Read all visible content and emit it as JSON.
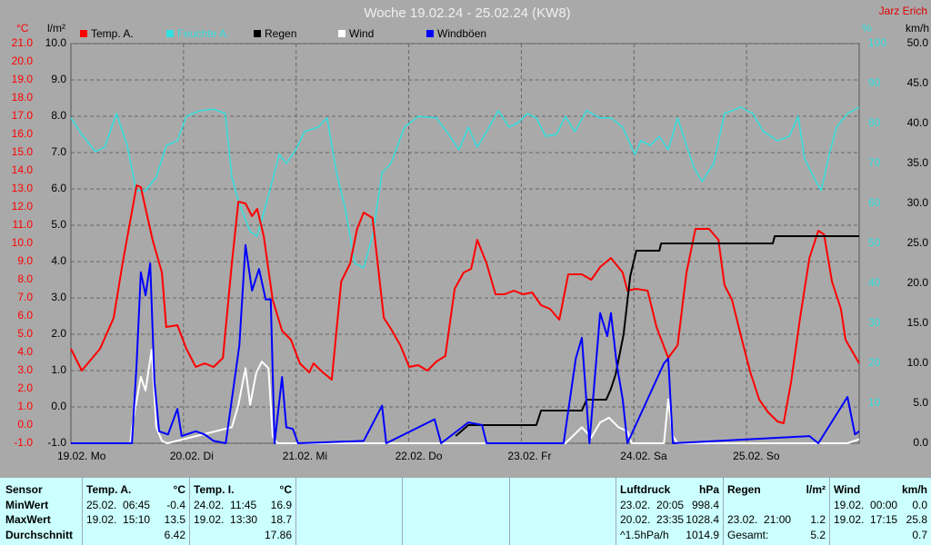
{
  "header": {
    "title": "Woche 19.02.24 - 25.02.24 (KW8)",
    "author": "Jarz Erich"
  },
  "chart_data": {
    "type": "line",
    "xlim": [
      0,
      168
    ],
    "xticks": [
      {
        "value": 0,
        "label": "19.02. Mo"
      },
      {
        "value": 24,
        "label": "20.02. Di"
      },
      {
        "value": 48,
        "label": "21.02. Mi"
      },
      {
        "value": 72,
        "label": "22.02. Do"
      },
      {
        "value": 96,
        "label": "23.02. Fr"
      },
      {
        "value": 120,
        "label": "24.02. Sa"
      },
      {
        "value": 144,
        "label": "25.02. So"
      }
    ],
    "grid": true,
    "axes": [
      {
        "label": "°C",
        "color": "#ff0000",
        "lim": [
          -1,
          21
        ],
        "ticks": [
          {
            "value": -1,
            "label": "-1.0"
          },
          {
            "value": 0,
            "label": "0.0"
          },
          {
            "value": 1,
            "label": "1.0"
          },
          {
            "value": 2,
            "label": "2.0"
          },
          {
            "value": 3,
            "label": "3.0"
          },
          {
            "value": 4,
            "label": "4.0"
          },
          {
            "value": 5,
            "label": "5.0"
          },
          {
            "value": 6,
            "label": "6.0"
          },
          {
            "value": 7,
            "label": "7.0"
          },
          {
            "value": 8,
            "label": "8.0"
          },
          {
            "value": 9,
            "label": "9.0"
          },
          {
            "value": 10,
            "label": "10.0"
          },
          {
            "value": 11,
            "label": "11.0"
          },
          {
            "value": 12,
            "label": "12.0"
          },
          {
            "value": 13,
            "label": "13.0"
          },
          {
            "value": 14,
            "label": "14.0"
          },
          {
            "value": 15,
            "label": "15.0"
          },
          {
            "value": 16,
            "label": "16.0"
          },
          {
            "value": 17,
            "label": "17.0"
          },
          {
            "value": 18,
            "label": "18.0"
          },
          {
            "value": 19,
            "label": "19.0"
          },
          {
            "value": 20,
            "label": "20.0"
          },
          {
            "value": 21,
            "label": "21.0"
          }
        ]
      },
      {
        "label": "l/m²",
        "color": "#000000",
        "lim": [
          -1,
          10
        ],
        "ticks": [
          {
            "value": -1,
            "label": "-1.0"
          },
          {
            "value": 0,
            "label": "0.0"
          },
          {
            "value": 1,
            "label": "1.0"
          },
          {
            "value": 2,
            "label": "2.0"
          },
          {
            "value": 3,
            "label": "3.0"
          },
          {
            "value": 4,
            "label": "4.0"
          },
          {
            "value": 5,
            "label": "5.0"
          },
          {
            "value": 6,
            "label": "6.0"
          },
          {
            "value": 7,
            "label": "7.0"
          },
          {
            "value": 8,
            "label": "8.0"
          },
          {
            "value": 9,
            "label": "9.0"
          },
          {
            "value": 10,
            "label": "10.0"
          }
        ]
      },
      {
        "label": "%",
        "color": "#33e0e0",
        "lim": [
          0,
          100
        ],
        "ticks": [
          10,
          20,
          30,
          40,
          50,
          60,
          70,
          80,
          90,
          100
        ]
      },
      {
        "label": "km/h",
        "color": "#000000",
        "lim": [
          0,
          50
        ],
        "ticks": [
          {
            "value": 0,
            "label": "0.0"
          },
          {
            "value": 5,
            "label": "5.0"
          },
          {
            "value": 10,
            "label": "10.0"
          },
          {
            "value": 15,
            "label": "15.0"
          },
          {
            "value": 20,
            "label": "20.0"
          },
          {
            "value": 25,
            "label": "25.0"
          },
          {
            "value": 30,
            "label": "30.0"
          },
          {
            "value": 35,
            "label": "35.0"
          },
          {
            "value": 40,
            "label": "40.0"
          },
          {
            "value": 45,
            "label": "45.0"
          },
          {
            "value": 50,
            "label": "50.0"
          }
        ]
      }
    ],
    "series": [
      {
        "name": "Temp. A.",
        "color": "#ff0000",
        "axis": 0,
        "x": [
          0,
          2.3,
          6.2,
          9.1,
          11,
          14,
          14.9,
          17.4,
          19.4,
          20.3,
          22.7,
          24.6,
          26.6,
          28.5,
          30.4,
          32.4,
          34.3,
          35.7,
          37.2,
          38.6,
          39.7,
          41.1,
          43,
          45,
          46.9,
          48.8,
          50.8,
          51.7,
          53.7,
          55.6,
          57.6,
          59.5,
          61,
          62.4,
          64.3,
          66.7,
          68.2,
          70.2,
          72.1,
          74,
          76,
          77.9,
          79.8,
          81.8,
          83.7,
          85.3,
          86.6,
          88.6,
          90.5,
          92.4,
          94.4,
          96.3,
          98.3,
          100.2,
          102.1,
          104.1,
          106,
          108.9,
          110.9,
          112.8,
          115.1,
          117.6,
          118.6,
          120.5,
          122.9,
          124.8,
          127.3,
          129.3,
          131.2,
          133.1,
          136,
          138,
          139.3,
          140.9,
          142.8,
          144.8,
          146.7,
          148.6,
          150.6,
          151.9,
          153.5,
          155.4,
          157.4,
          159.3,
          160.5,
          162.2,
          164.1,
          165.1,
          168
        ],
        "values": [
          4.2,
          3.0,
          4.2,
          5.9,
          8.9,
          13.2,
          13.1,
          10.2,
          8.4,
          5.4,
          5.5,
          4.2,
          3.2,
          3.4,
          3.2,
          3.7,
          8.9,
          12.3,
          12.2,
          11.5,
          11.9,
          10.4,
          6.9,
          5.2,
          4.7,
          3.4,
          2.9,
          3.4,
          2.9,
          2.5,
          7.9,
          8.9,
          10.8,
          11.7,
          11.4,
          5.9,
          5.3,
          4.4,
          3.2,
          3.3,
          3.0,
          3.5,
          3.8,
          7.5,
          8.4,
          8.6,
          10.2,
          8.9,
          7.2,
          7.2,
          7.4,
          7.2,
          7.3,
          6.6,
          6.4,
          5.8,
          8.3,
          8.3,
          8.0,
          8.7,
          9.2,
          8.4,
          7.4,
          7.5,
          7.4,
          5.4,
          3.7,
          4.4,
          8.4,
          10.8,
          10.8,
          10.2,
          7.7,
          6.9,
          4.9,
          2.9,
          1.4,
          0.7,
          0.2,
          0.1,
          2.4,
          5.9,
          9.2,
          10.7,
          10.5,
          7.9,
          6.4,
          4.7,
          3.4
        ]
      },
      {
        "name": "Feuchte A.",
        "color": "#33e0e0",
        "axis": 2,
        "x": [
          0,
          2.3,
          5.2,
          7.2,
          9.7,
          12,
          13.9,
          15.9,
          18.2,
          20.3,
          22.7,
          24.6,
          27.5,
          30.4,
          32.9,
          34.3,
          35.9,
          38.2,
          39.7,
          42.1,
          44.4,
          45.9,
          47.9,
          49.8,
          52.7,
          54.6,
          56.6,
          58.5,
          60.5,
          62.4,
          64.3,
          66.3,
          68.2,
          71.1,
          74,
          77.9,
          80.8,
          82.7,
          84.7,
          86.6,
          88.6,
          91.1,
          93.4,
          95.3,
          97.3,
          99.2,
          101.2,
          103.5,
          105.4,
          107.4,
          109.9,
          112.8,
          115.1,
          117.6,
          120.2,
          121.5,
          123.5,
          125.4,
          127.3,
          129.3,
          131.2,
          132.8,
          134.5,
          137,
          139.3,
          142.8,
          145.3,
          147.6,
          150.6,
          153.1,
          155,
          156.4,
          158.3,
          159.9,
          161.6,
          163.2,
          165.5,
          168
        ],
        "values": [
          81.4,
          77.3,
          73.0,
          74.1,
          82.5,
          74.5,
          63.2,
          63.2,
          66.6,
          74.5,
          75.7,
          81.8,
          83.2,
          83.6,
          82.5,
          66.6,
          59.8,
          53.0,
          51.8,
          62.0,
          72.3,
          70.0,
          73.4,
          78.0,
          79.1,
          81.4,
          67.7,
          58.6,
          45.0,
          43.9,
          51.8,
          67.7,
          70.0,
          79.1,
          81.8,
          81.4,
          76.8,
          73.4,
          79.1,
          74.1,
          78.0,
          83.2,
          79.1,
          80.2,
          82.5,
          81.4,
          76.8,
          77.3,
          81.8,
          78.0,
          83.2,
          81.4,
          81.4,
          79.1,
          72.3,
          75.7,
          74.5,
          76.8,
          73.4,
          81.4,
          74.5,
          68.9,
          65.5,
          70.0,
          82.5,
          84.1,
          82.5,
          78.0,
          75.7,
          76.8,
          81.8,
          71.1,
          66.6,
          63.2,
          72.3,
          79.1,
          82.5,
          84.1
        ]
      },
      {
        "name": "Regen",
        "color": "#000000",
        "axis": 1,
        "x": [
          82,
          84.7,
          99.2,
          100.2,
          108.9,
          109.9,
          114.1,
          115.1,
          116.1,
          117.8,
          119.2,
          120.5,
          125.4,
          125.8,
          149.6,
          150,
          168
        ],
        "values": [
          -0.8,
          -0.5,
          -0.5,
          -0.1,
          -0.1,
          0.2,
          0.2,
          0.5,
          0.9,
          2.0,
          3.6,
          4.3,
          4.3,
          4.5,
          4.5,
          4.7,
          4.7
        ]
      },
      {
        "name": "Wind",
        "color": "#ffffff",
        "axis": 3,
        "x": [
          0,
          12.7,
          13,
          14.9,
          15.9,
          17.2,
          18.2,
          19.4,
          20.5,
          34.3,
          35.7,
          37.2,
          38.2,
          39.5,
          40.7,
          42.1,
          43,
          44,
          105.4,
          108.9,
          110.9,
          112.8,
          114.7,
          116.7,
          118.6,
          119.5,
          126.4,
          127.3,
          128.3,
          129.3,
          165.5,
          168
        ],
        "values": [
          0,
          0,
          2.0,
          8.3,
          6.6,
          11.7,
          2.0,
          0.3,
          0,
          2.0,
          4.8,
          9.4,
          4.8,
          8.8,
          10.2,
          9.4,
          0.9,
          0,
          0,
          2.0,
          0.7,
          2.6,
          3.2,
          2.0,
          1.5,
          0,
          0,
          5.5,
          0.9,
          0,
          0,
          0.5
        ]
      },
      {
        "name": "Windböen",
        "color": "#0000ff",
        "axis": 3,
        "x": [
          0,
          13,
          14,
          14.9,
          15.9,
          16.9,
          17.8,
          18.8,
          20.7,
          22.7,
          23.6,
          26.6,
          28.5,
          30.4,
          33,
          34.3,
          35.9,
          37.2,
          38.6,
          40.1,
          41.5,
          42.6,
          43.4,
          45,
          45.9,
          47.3,
          48.4,
          62.4,
          66.3,
          67.2,
          77.5,
          78.9,
          84.7,
          87.6,
          88.6,
          105,
          107.6,
          108.9,
          110.5,
          112.8,
          114.3,
          115.1,
          116.3,
          117.6,
          118.6,
          126.4,
          127.3,
          128.3,
          157.4,
          159.3,
          165.5,
          167.1,
          168
        ],
        "values": [
          0,
          0,
          10.0,
          21.4,
          18.5,
          22.5,
          7.7,
          1.5,
          1.1,
          4.3,
          0.9,
          1.5,
          1.1,
          0.3,
          0,
          5.5,
          12.3,
          24.8,
          19.1,
          21.8,
          18.0,
          18.0,
          0,
          8.3,
          2.0,
          1.8,
          0,
          0.3,
          4.7,
          0,
          3.0,
          0,
          2.6,
          2.3,
          0,
          0,
          10.6,
          13.2,
          0,
          16.3,
          13.4,
          16.3,
          10.0,
          5.5,
          0,
          10.0,
          10.6,
          0,
          0.9,
          0,
          5.8,
          1.1,
          1.5
        ]
      }
    ]
  },
  "table": {
    "row_labels": [
      "Sensor",
      "MinWert",
      "MaxWert",
      "Durchschnitt"
    ],
    "columns": [
      {
        "title": "Temp. A.",
        "unit": "°C",
        "cells": [
          {
            "time": "25.02.  06:45",
            "value": "-0.4"
          },
          {
            "time": "19.02.  15:10",
            "value": "13.5"
          },
          {
            "value": "6.42"
          }
        ]
      },
      {
        "title": "Temp. I.",
        "unit": "°C",
        "cells": [
          {
            "time": "24.02.  11:45",
            "value": "16.9"
          },
          {
            "time": "19.02.  13:30",
            "value": "18.7"
          },
          {
            "value": "17.86"
          }
        ]
      },
      null,
      null,
      null,
      {
        "title": "Luftdruck",
        "unit": "hPa",
        "cells": [
          {
            "time": "23.02.  20:05",
            "value": "998.4"
          },
          {
            "time": "20.02.  23:35",
            "value": "1028.4"
          },
          {
            "time": "^1.5hPa/h",
            "value": "1014.9"
          }
        ]
      },
      {
        "title": "Regen",
        "unit": "l/m²",
        "cells": [
          null,
          {
            "time": "23.02.  21:00",
            "value": "1.2"
          },
          {
            "time": "Gesamt:",
            "value": "5.2"
          }
        ]
      },
      {
        "title": "Wind",
        "unit": "km/h",
        "cells": [
          {
            "time": "19.02.  00:00",
            "value": "0.0"
          },
          {
            "time": "19.02.  17:15",
            "value": "25.8"
          },
          {
            "value": "0.7"
          }
        ]
      }
    ]
  }
}
